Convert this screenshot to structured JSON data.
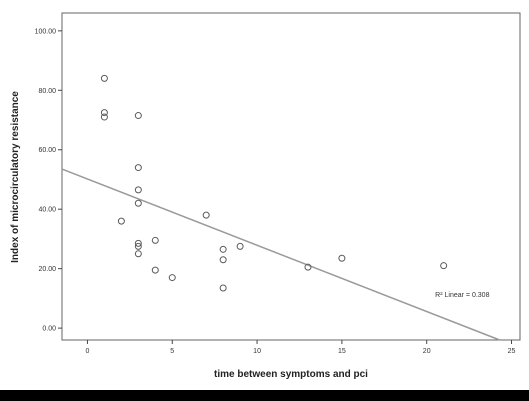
{
  "chart_data": {
    "type": "scatter",
    "title": "",
    "xlabel": "time between symptoms and pci",
    "ylabel": "Index of microcirculatory resistance",
    "xlim": [
      -1.5,
      25.5
    ],
    "ylim": [
      -4,
      106
    ],
    "xticks": [
      0,
      5,
      10,
      15,
      20,
      25
    ],
    "xtick_labels": [
      "0",
      "5",
      "10",
      "15",
      "20",
      "25"
    ],
    "yticks": [
      0,
      20,
      40,
      60,
      80,
      100
    ],
    "ytick_labels": [
      "0.00",
      "20.00",
      "40.00",
      "60.00",
      "80.00",
      "100.00"
    ],
    "grid": false,
    "points": [
      {
        "x": 1,
        "y": 84
      },
      {
        "x": 1,
        "y": 72.5
      },
      {
        "x": 1,
        "y": 71
      },
      {
        "x": 2,
        "y": 36
      },
      {
        "x": 3,
        "y": 71.5
      },
      {
        "x": 3,
        "y": 54
      },
      {
        "x": 3,
        "y": 46.5
      },
      {
        "x": 3,
        "y": 42
      },
      {
        "x": 3,
        "y": 28.5
      },
      {
        "x": 3,
        "y": 27.5
      },
      {
        "x": 3,
        "y": 25
      },
      {
        "x": 4,
        "y": 29.5
      },
      {
        "x": 4,
        "y": 19.5
      },
      {
        "x": 5,
        "y": 17
      },
      {
        "x": 7,
        "y": 38
      },
      {
        "x": 8,
        "y": 26.5
      },
      {
        "x": 8,
        "y": 23
      },
      {
        "x": 8,
        "y": 13.5
      },
      {
        "x": 9,
        "y": 27.5
      },
      {
        "x": 13,
        "y": 20.5
      },
      {
        "x": 15,
        "y": 23.5
      },
      {
        "x": 21,
        "y": 21
      }
    ],
    "fit_line": {
      "x_start": -1.5,
      "y_start": 53.5,
      "x_end": 24.3,
      "y_end": -4
    },
    "annotation": {
      "label": "R² Linear = 0.308",
      "x": 20.5,
      "y": 10.5
    },
    "colors": {
      "marker": "#5a5a5a",
      "line": "#9a9a9a",
      "axis": "#444444",
      "background": "#ffffff"
    }
  }
}
